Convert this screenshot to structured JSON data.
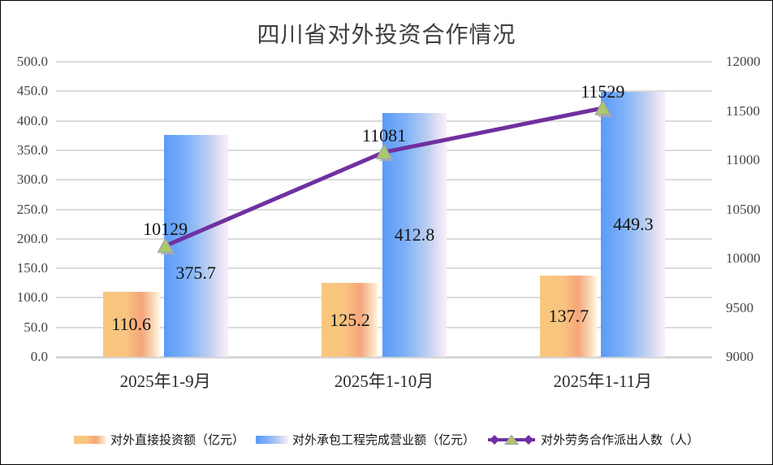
{
  "title": "四川省对外投资合作情况",
  "chart_data": {
    "type": "combo-bar-line",
    "categories": [
      "2025年1-9月",
      "2025年1-10月",
      "2025年1-11月"
    ],
    "series": [
      {
        "name": "对外直接投资额（亿元）",
        "type": "bar",
        "axis": "left",
        "values": [
          110.6,
          125.2,
          137.7
        ],
        "value_labels": [
          "110.6",
          "125.2",
          "137.7"
        ],
        "gradient": [
          "#F9C77B 0%",
          "#F8C480 40%",
          "#F5A57A 68%",
          "#FBE3C3 92%",
          "#FEF9EE 100%"
        ]
      },
      {
        "name": "对外承包工程完成营业额（亿元）",
        "type": "bar",
        "axis": "left",
        "values": [
          375.7,
          412.8,
          449.3
        ],
        "value_labels": [
          "375.7",
          "412.8",
          "449.3"
        ],
        "gradient": [
          "#5B9BF8 0%",
          "#7DB0F9 35%",
          "#BCCFF0 70%",
          "#EFE5F6 92%",
          "#F9EFFA 100%"
        ]
      },
      {
        "name": "对外劳务合作派出人数（人）",
        "type": "line",
        "axis": "right",
        "values": [
          10129,
          11081,
          11529
        ],
        "value_labels": [
          "10129",
          "11081",
          "11529"
        ],
        "line_color": "#7030A0",
        "marker_fill": "#A9C969",
        "marker_stroke": "#A6A6A6",
        "marker_shadow": "#ABABAB"
      }
    ],
    "left_axis": {
      "min": 0,
      "max": 500,
      "step": 50,
      "labels": [
        "0.0",
        "50.0",
        "100.0",
        "150.0",
        "200.0",
        "250.0",
        "300.0",
        "350.0",
        "400.0",
        "450.0",
        "500.0"
      ]
    },
    "right_axis": {
      "min": 9000,
      "max": 12000,
      "step": 500,
      "labels": [
        "9000",
        "9500",
        "10000",
        "10500",
        "11000",
        "11500",
        "12000"
      ]
    },
    "grid": true,
    "legend_position": "bottom",
    "gridline_color": "#DBDBDB",
    "tick_color": "#444444",
    "label_color": "#141414"
  }
}
